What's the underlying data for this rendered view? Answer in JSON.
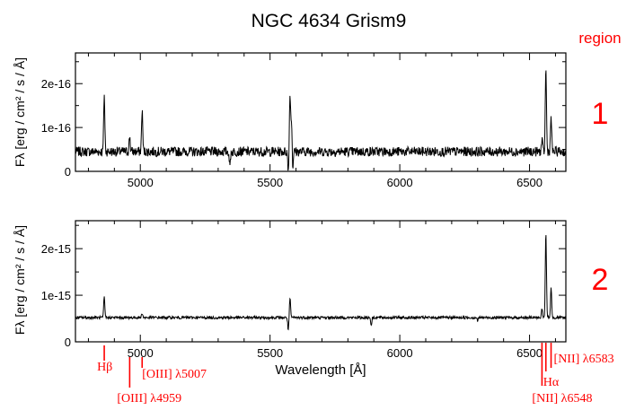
{
  "chart_data": [
    {
      "type": "line",
      "title": "NGC 4634 Grism9",
      "region_label": "1",
      "ylabel": "Fλ [erg / cm² / s / Å]",
      "xlabel": "",
      "xlim": [
        4750,
        6640
      ],
      "ylim": [
        0,
        2.7e-16
      ],
      "x_ticks": [
        5000,
        5500,
        6000,
        6500
      ],
      "x_tick_labels": [
        "5000",
        "5500",
        "6000",
        "6500"
      ],
      "y_ticks": [
        0,
        1e-16,
        2e-16
      ],
      "y_tick_labels": [
        "0",
        "1e-16",
        "2e-16"
      ],
      "grid": false,
      "continuum_level": 4.5e-17,
      "noise_amplitude": 1.1e-17,
      "spikes": [
        {
          "x": 4861,
          "y": 1.75e-16
        },
        {
          "x": 4959,
          "y": 8e-17
        },
        {
          "x": 5007,
          "y": 1.4e-16
        },
        {
          "x": 5577,
          "y": 1.78e-16
        },
        {
          "x": 5583,
          "y": 1.2e-16
        },
        {
          "x": 6548,
          "y": 7e-17
        },
        {
          "x": 6563,
          "y": 2.4e-16
        },
        {
          "x": 6583,
          "y": 1.25e-16
        }
      ],
      "dips": [
        {
          "x": 5345,
          "y": 1e-17
        },
        {
          "x": 5570,
          "y": 0
        },
        {
          "x": 5587,
          "y": 0
        }
      ]
    },
    {
      "type": "line",
      "title": "",
      "region_label": "2",
      "ylabel": "Fλ [erg / cm² / s / Å]",
      "xlabel": "Wavelength [Å]",
      "xlim": [
        4750,
        6640
      ],
      "ylim": [
        0,
        2.6e-15
      ],
      "x_ticks": [
        5000,
        5500,
        6000,
        6500
      ],
      "x_tick_labels": [
        "5000",
        "5500",
        "6000",
        "6500"
      ],
      "y_ticks": [
        0,
        1e-15,
        2e-15
      ],
      "y_tick_labels": [
        "0",
        "1e-15",
        "2e-15"
      ],
      "grid": false,
      "continuum_level": 5.2e-16,
      "noise_amplitude": 3e-17,
      "spikes": [
        {
          "x": 4861,
          "y": 9.5e-16
        },
        {
          "x": 5007,
          "y": 6.2e-16
        },
        {
          "x": 5577,
          "y": 9.2e-16
        },
        {
          "x": 6548,
          "y": 7e-16
        },
        {
          "x": 6563,
          "y": 2.35e-15
        },
        {
          "x": 6583,
          "y": 1.15e-15
        }
      ],
      "dips": [
        {
          "x": 5570,
          "y": 2.5e-16
        },
        {
          "x": 5890,
          "y": 3.5e-16
        },
        {
          "x": 6300,
          "y": 4.5e-16
        }
      ]
    }
  ],
  "legend_title": "region",
  "colors": {
    "axis": "#000000",
    "annotation": "#ff0000",
    "spectrum": "#000000"
  },
  "line_markers": [
    {
      "name": "Hβ",
      "wavelength": 4861
    },
    {
      "name": "[OIII] λ4959",
      "wavelength": 4959
    },
    {
      "name": "[OIII] λ5007",
      "wavelength": 5007
    },
    {
      "name": "[NII] λ6548",
      "wavelength": 6548
    },
    {
      "name": "Hα",
      "wavelength": 6563
    },
    {
      "name": "[NII] λ6583",
      "wavelength": 6583
    }
  ]
}
